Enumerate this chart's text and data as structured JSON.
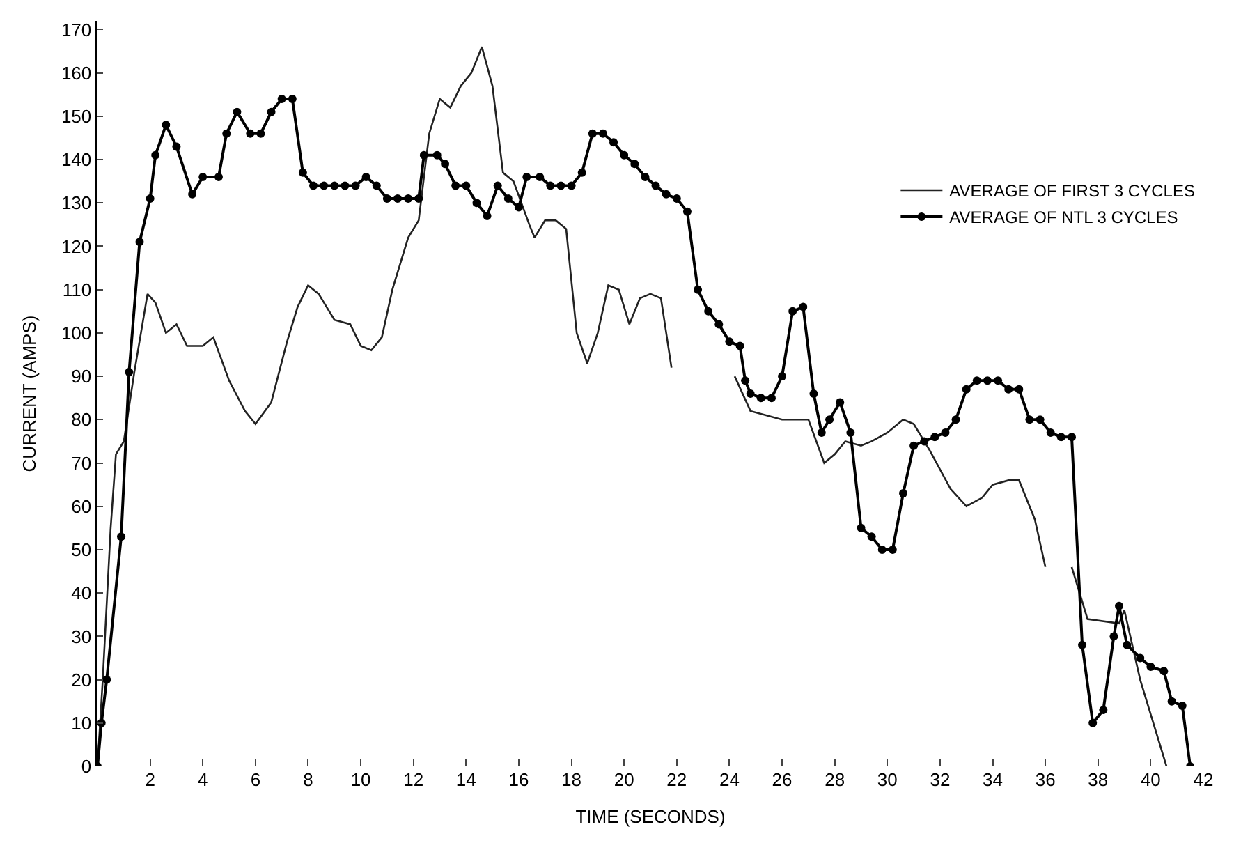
{
  "chart_data": {
    "type": "line",
    "xlabel": "TIME (SECONDS)",
    "ylabel": "CURRENT (AMPS)",
    "xlim": [
      0,
      42
    ],
    "xticks": [
      2,
      4,
      6,
      8,
      10,
      12,
      14,
      16,
      18,
      20,
      22,
      24,
      26,
      28,
      30,
      32,
      34,
      36,
      38,
      40,
      42
    ],
    "ylim": [
      0,
      172
    ],
    "yticks": [
      0,
      10,
      20,
      30,
      40,
      50,
      60,
      70,
      80,
      90,
      100,
      110,
      120,
      130,
      140,
      150,
      160,
      170
    ],
    "legend": "right",
    "series": [
      {
        "name": "AVERAGE OF FIRST 3 CYCLES",
        "color": "#222222",
        "marker": "none",
        "x": [
          0,
          0.2,
          0.5,
          0.7,
          1.0,
          1.4,
          1.9,
          2.2,
          2.6,
          3.0,
          3.4,
          4.0,
          4.4,
          5.0,
          5.6,
          6.0,
          6.6,
          7.2,
          7.6,
          8.0,
          8.4,
          9.0,
          9.6,
          10.0,
          10.4,
          10.8,
          11.2,
          11.8,
          12.2,
          12.6,
          13.0,
          13.4,
          13.8,
          14.2,
          14.6,
          15.0,
          15.4,
          15.8,
          16.4,
          16.6,
          17.0,
          17.4,
          17.8,
          18.2,
          18.6,
          19.0,
          19.4,
          19.8,
          20.2,
          20.6,
          21.0,
          21.4,
          21.8,
          23.0,
          24.2,
          24.8,
          26.0,
          27.0,
          27.6,
          28.0,
          28.4,
          29.0,
          29.4,
          30.0,
          30.6,
          31.0,
          31.6,
          32.4,
          33.0,
          33.6,
          34.0,
          34.6,
          35.0,
          35.6,
          36.0,
          36.5,
          37.0,
          37.6,
          38.8,
          39.0,
          39.6,
          40.6
        ],
        "values": [
          0,
          20,
          55,
          72,
          75,
          91,
          109,
          107,
          100,
          102,
          97,
          97,
          99,
          89,
          82,
          79,
          84,
          98,
          106,
          111,
          109,
          103,
          102,
          97,
          96,
          99,
          110,
          122,
          126,
          146,
          154,
          152,
          157,
          160,
          166,
          157,
          137,
          135,
          125,
          122,
          126,
          126,
          124,
          100,
          93,
          100,
          111,
          110,
          102,
          108,
          109,
          108,
          92,
          null,
          90,
          82,
          80,
          80,
          70,
          72,
          75,
          74,
          75,
          77,
          80,
          79,
          73,
          64,
          60,
          62,
          65,
          66,
          66,
          57,
          46,
          null,
          46,
          34,
          33,
          36,
          20,
          0
        ]
      },
      {
        "name": "AVERAGE OF NTL 3 CYCLES",
        "color": "#000000",
        "marker": "circle",
        "x": [
          0,
          0.15,
          0.35,
          0.9,
          1.2,
          1.6,
          2.0,
          2.2,
          2.6,
          3.0,
          3.6,
          4.0,
          4.6,
          4.9,
          5.3,
          5.8,
          6.2,
          6.6,
          7.0,
          7.4,
          7.8,
          8.2,
          8.6,
          9.0,
          9.4,
          9.8,
          10.2,
          10.6,
          11.0,
          11.4,
          11.8,
          12.2,
          12.4,
          12.9,
          13.2,
          13.6,
          14.0,
          14.4,
          14.8,
          15.2,
          15.6,
          16.0,
          16.3,
          16.8,
          17.2,
          17.6,
          18.0,
          18.4,
          18.8,
          19.2,
          19.6,
          20.0,
          20.4,
          20.8,
          21.2,
          21.6,
          22.0,
          22.4,
          22.8,
          23.2,
          23.6,
          24.0,
          24.4,
          24.6,
          24.8,
          25.2,
          25.6,
          26.0,
          26.4,
          26.8,
          27.2,
          27.5,
          27.8,
          28.2,
          28.6,
          29.0,
          29.4,
          29.8,
          30.2,
          30.6,
          31.0,
          31.4,
          31.8,
          32.2,
          32.6,
          33.0,
          33.4,
          33.8,
          34.2,
          34.6,
          35.0,
          35.4,
          35.8,
          36.2,
          36.6,
          37.0,
          37.4,
          37.8,
          38.2,
          38.6,
          38.8,
          39.1,
          39.6,
          40.0,
          40.5,
          40.8,
          41.2,
          41.5
        ],
        "values": [
          0,
          10,
          20,
          53,
          91,
          121,
          131,
          141,
          148,
          143,
          132,
          136,
          136,
          146,
          151,
          146,
          146,
          151,
          154,
          154,
          137,
          134,
          134,
          134,
          134,
          134,
          136,
          134,
          131,
          131,
          131,
          131,
          141,
          141,
          139,
          134,
          134,
          130,
          127,
          134,
          131,
          129,
          136,
          136,
          134,
          134,
          134,
          137,
          146,
          146,
          144,
          141,
          139,
          136,
          134,
          132,
          131,
          128,
          110,
          105,
          102,
          98,
          97,
          89,
          86,
          85,
          85,
          90,
          105,
          106,
          86,
          77,
          80,
          84,
          77,
          55,
          53,
          50,
          50,
          63,
          74,
          75,
          76,
          77,
          80,
          87,
          89,
          89,
          89,
          87,
          87,
          80,
          80,
          77,
          76,
          76,
          28,
          10,
          13,
          30,
          37,
          28,
          25,
          23,
          22,
          15,
          14,
          0
        ]
      }
    ]
  }
}
